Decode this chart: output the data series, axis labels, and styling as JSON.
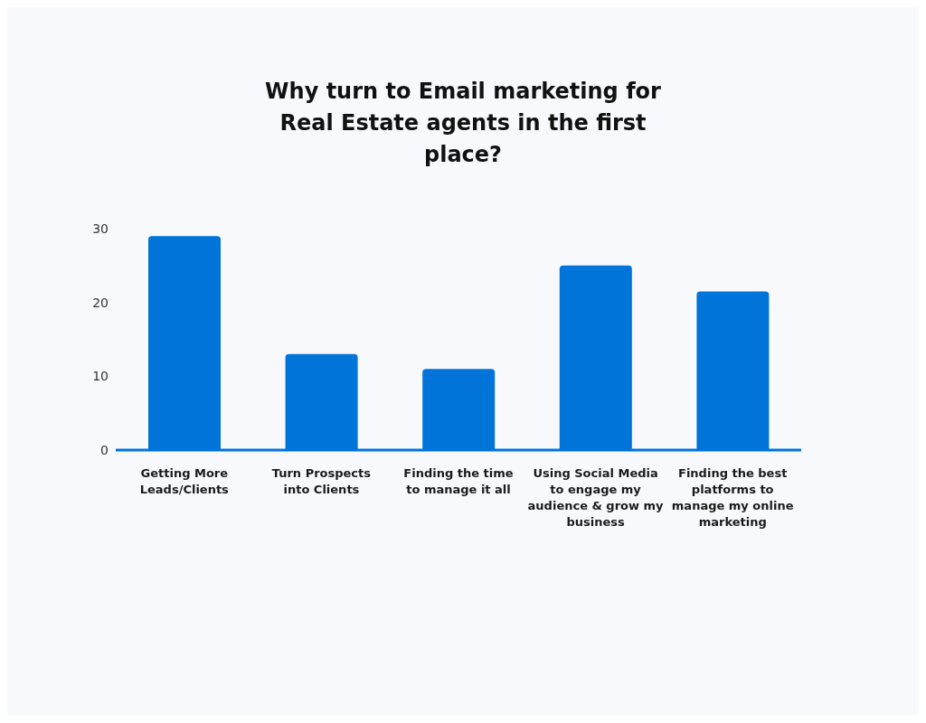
{
  "chart_data": {
    "type": "bar",
    "title": "Why turn to Email marketing for Real Estate agents in the first place?",
    "categories": [
      "Getting More Leads/Clients",
      "Turn Prospects into Clients",
      "Finding the time to manage it all",
      "Using Social Media to engage my audience & grow my business",
      "Finding the best platforms to manage my online marketing"
    ],
    "values": [
      29,
      13,
      11,
      25,
      21.5
    ],
    "color": "#0074d9",
    "ylim": [
      0,
      30
    ],
    "yticks": [
      0,
      10,
      20,
      30
    ],
    "grid": false,
    "legend": false
  }
}
